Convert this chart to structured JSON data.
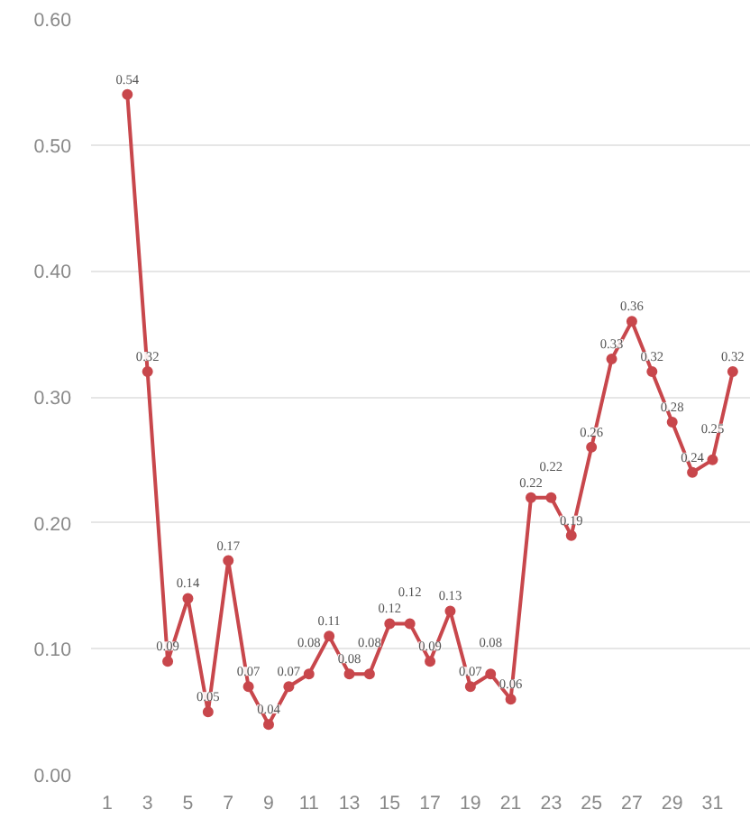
{
  "chart_data": {
    "type": "line",
    "x": [
      2,
      3,
      4,
      5,
      6,
      7,
      8,
      9,
      10,
      11,
      12,
      13,
      14,
      15,
      16,
      17,
      18,
      19,
      20,
      21,
      22,
      23,
      24,
      25,
      26,
      27,
      28,
      29,
      30,
      31,
      32
    ],
    "series": [
      {
        "color": "#c8474c",
        "values": [
          0.54,
          0.32,
          0.09,
          0.14,
          0.05,
          0.17,
          0.07,
          0.04,
          0.07,
          0.08,
          0.11,
          0.08,
          0.08,
          0.12,
          0.12,
          0.09,
          0.13,
          0.07,
          0.08,
          0.06,
          0.22,
          0.22,
          0.19,
          0.26,
          0.33,
          0.36,
          0.32,
          0.28,
          0.24,
          0.25,
          0.32
        ]
      }
    ],
    "xlim": [
      0.2,
      32.9
    ],
    "xticks": [
      1,
      3,
      5,
      7,
      9,
      11,
      13,
      15,
      17,
      19,
      21,
      23,
      25,
      27,
      29,
      31
    ],
    "ylim": [
      0,
      0.6
    ],
    "yticks": [
      {
        "value": 0,
        "label": "0.00"
      },
      {
        "value": 0.1,
        "label": "0.10"
      },
      {
        "value": 0.2,
        "label": "0.20"
      },
      {
        "value": 0.3,
        "label": "0.30"
      },
      {
        "value": 0.4,
        "label": "0.40"
      },
      {
        "value": 0.5,
        "label": "0.50"
      },
      {
        "value": 0.6,
        "label": "0.60"
      }
    ],
    "grid": "y",
    "marker": "circle",
    "line_style": "solid",
    "data_labels": true
  }
}
